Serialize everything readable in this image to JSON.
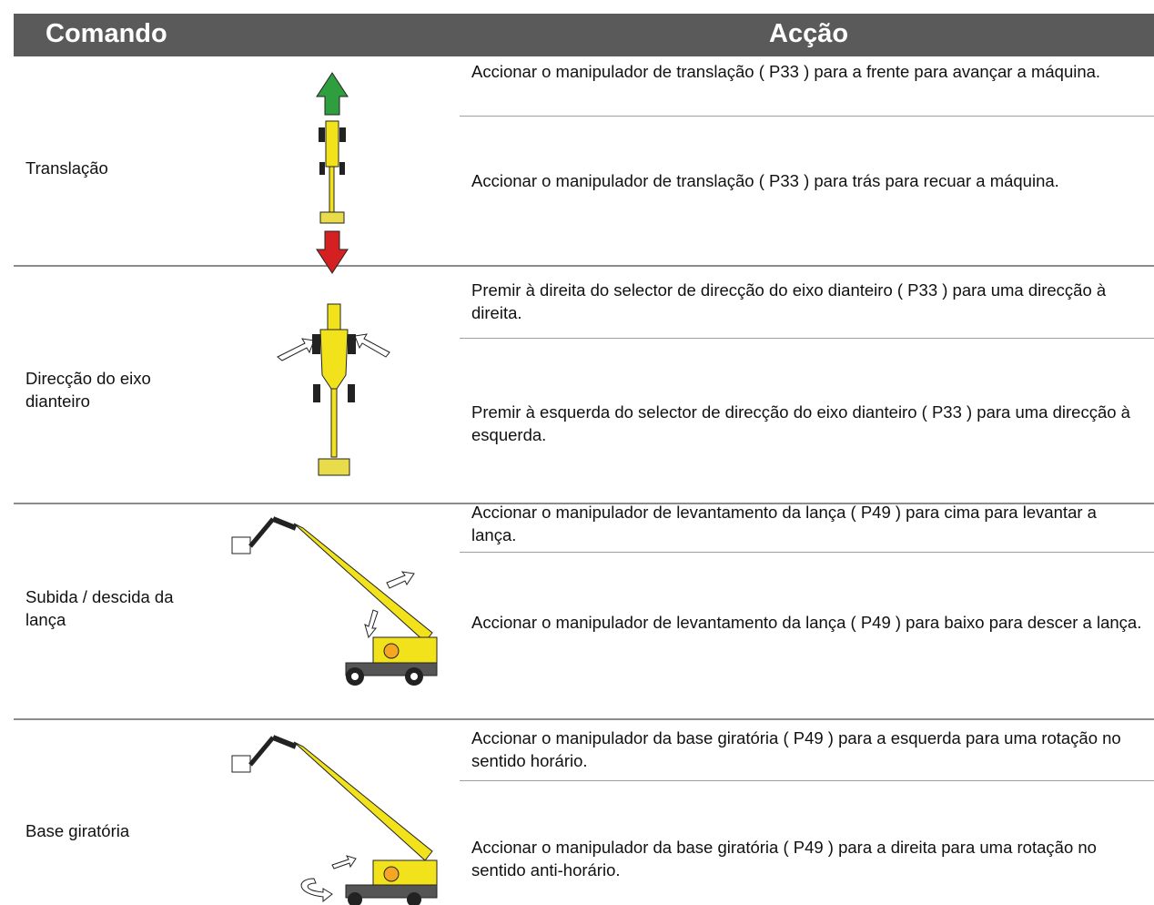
{
  "header": {
    "command": "Comando",
    "action": "Acção"
  },
  "rows": [
    {
      "command": "Translação",
      "actions": [
        "Accionar o manipulador de translação ( P33 ) para a frente para avançar a máquina.",
        "Accionar o manipulador de translação ( P33 ) para trás para recuar a máquina."
      ]
    },
    {
      "command": "Direcção do eixo dianteiro",
      "actions": [
        "Premir à direita do selector de direcção do eixo dianteiro ( P33 ) para uma direcção à direita.",
        "Premir à esquerda do selector de direcção do eixo dianteiro ( P33 ) para uma direcção à esquerda."
      ]
    },
    {
      "command": "Subida / descida da lança",
      "actions": [
        "Accionar o manipulador de levantamento da lança ( P49 ) para cima para levantar a lança.",
        "Accionar o manipulador de levantamento da lança ( P49 ) para baixo para descer a lança."
      ]
    },
    {
      "command": "Base giratória",
      "actions": [
        "Accionar o manipulador da base giratória ( P49 ) para a esquerda para uma rotação no sentido horário.",
        "Accionar o manipulador da base giratória ( P49 ) para a direita para uma rotação no sentido anti-horário."
      ]
    }
  ]
}
